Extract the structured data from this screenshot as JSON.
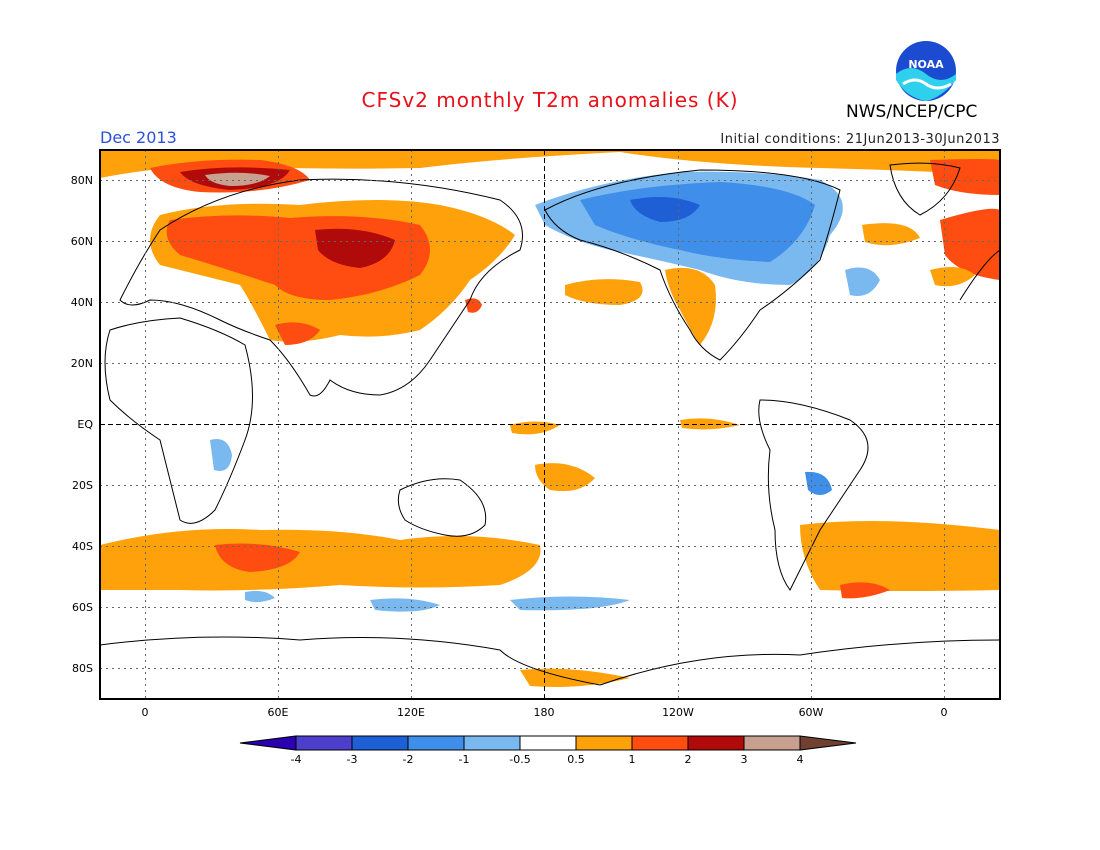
{
  "title": "CFSv2 monthly T2m anomalies (K)",
  "agency": "NWS/NCEP/CPC",
  "logo_text": "NOAA",
  "month_label": "Dec 2013",
  "initial_conditions": "Initial conditions: 21Jun2013-30Jun2013",
  "lat_labels": [
    "80N",
    "60N",
    "40N",
    "20N",
    "EQ",
    "20S",
    "40S",
    "60S",
    "80S"
  ],
  "lon_labels": [
    "0",
    "60E",
    "120E",
    "180",
    "120W",
    "60W",
    "0"
  ],
  "colorbar": {
    "tick_labels": [
      "-4",
      "-3",
      "-2",
      "-1",
      "-0.5",
      "0.5",
      "1",
      "2",
      "3",
      "4"
    ],
    "colors": [
      "#2a00b0",
      "#4b3fcc",
      "#1f5fd6",
      "#3f8eea",
      "#7ab8f0",
      "#ffffff",
      "#ffa10a",
      "#ff4c10",
      "#b00a0a",
      "#c8a090",
      "#704030"
    ]
  },
  "map_data": {
    "projection": "cylindrical",
    "lon_range": [
      -20,
      380
    ],
    "lat_range": [
      -90,
      90
    ],
    "variable": "2m temperature anomaly",
    "units": "K"
  }
}
